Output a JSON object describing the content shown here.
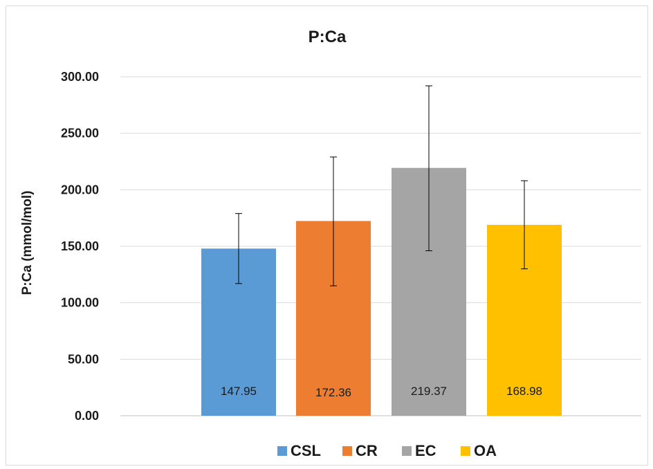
{
  "chart_data": {
    "type": "bar",
    "title": "P:Ca",
    "ylabel": "P:Ca (mmol/mol)",
    "xlabel": "",
    "ylim": [
      0,
      300
    ],
    "yticks": [
      "0.00",
      "50.00",
      "100.00",
      "150.00",
      "200.00",
      "250.00",
      "300.00"
    ],
    "grid": true,
    "legend_position": "bottom",
    "series": [
      {
        "name": "CSL",
        "value": 147.95,
        "label": "147.95",
        "error_low": 117,
        "error_high": 179,
        "color": "#5b9bd5"
      },
      {
        "name": "CR",
        "value": 172.36,
        "label": "172.36",
        "error_low": 115,
        "error_high": 229,
        "color": "#ed7d31"
      },
      {
        "name": "EC",
        "value": 219.37,
        "label": "219.37",
        "error_low": 146,
        "error_high": 292,
        "color": "#a5a5a5"
      },
      {
        "name": "OA",
        "value": 168.98,
        "label": "168.98",
        "error_low": 130,
        "error_high": 208,
        "color": "#ffc000"
      }
    ]
  }
}
